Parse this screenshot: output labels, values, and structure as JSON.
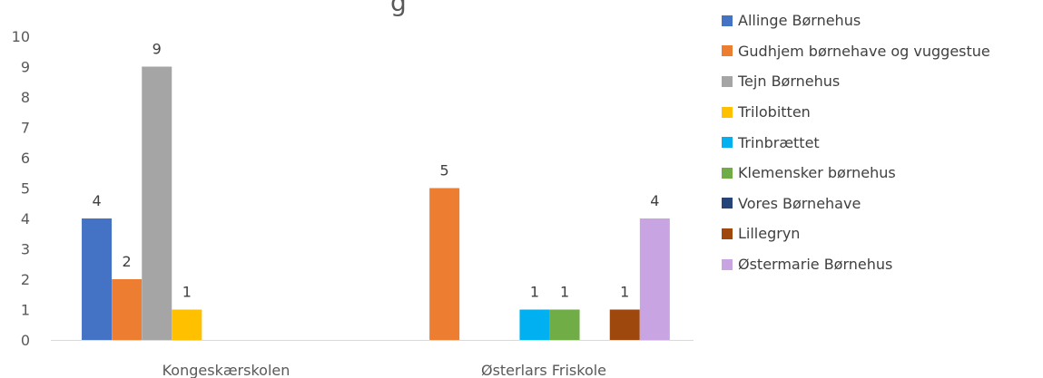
{
  "chart_data": {
    "type": "bar",
    "title": "",
    "title_visible_fragment": "g",
    "categories": [
      "Kongeskærskolen",
      "Østerlars Friskole"
    ],
    "ylim": [
      0,
      10
    ],
    "yticks": [
      "0",
      "1",
      "2",
      "3",
      "4",
      "5",
      "6",
      "7",
      "8",
      "9",
      "10"
    ],
    "grid": false,
    "legend_position": "right",
    "series": [
      {
        "name": "Allinge Børnehus",
        "color": "#4472C4",
        "values": [
          4,
          null
        ]
      },
      {
        "name": "Gudhjem børnehave og vuggestue",
        "color": "#ED7D31",
        "values": [
          2,
          5
        ]
      },
      {
        "name": "Tejn Børnehus",
        "color": "#A5A5A5",
        "values": [
          9,
          null
        ]
      },
      {
        "name": "Trilobitten",
        "color": "#FFC000",
        "values": [
          1,
          null
        ]
      },
      {
        "name": "Trinbrættet",
        "color": "#00B0F0",
        "values": [
          null,
          1
        ]
      },
      {
        "name": "Klemensker børnehus",
        "color": "#70AD47",
        "values": [
          null,
          1
        ]
      },
      {
        "name": "Vores Børnehave",
        "color": "#264478",
        "values": [
          null,
          null
        ]
      },
      {
        "name": "Lillegryn",
        "color": "#9E480E",
        "values": [
          null,
          1
        ]
      },
      {
        "name": "Østermarie Børnehus",
        "color": "#C9A4E3",
        "values": [
          null,
          4
        ]
      }
    ]
  }
}
